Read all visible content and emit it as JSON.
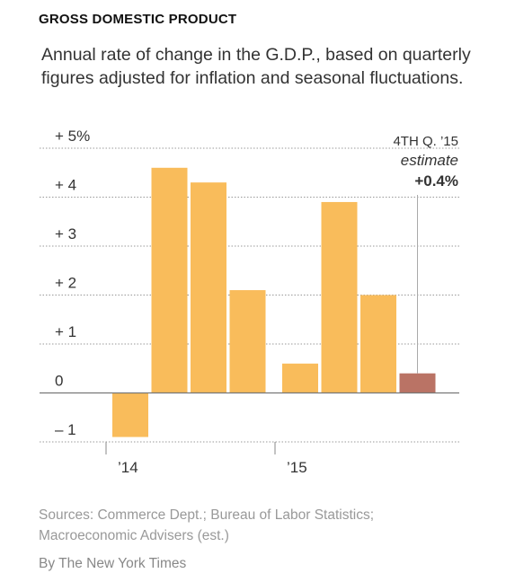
{
  "header": {
    "kicker": "GROSS DOMESTIC PRODUCT",
    "subtitle": "Annual rate of change in the G.D.P., based on quarterly figures adjusted for inflation and seasonal fluctuations."
  },
  "chart_data": {
    "type": "bar",
    "ylim": [
      -1,
      5
    ],
    "yticks": [
      5,
      4,
      3,
      2,
      1,
      0,
      -1
    ],
    "ytick_labels": [
      "+ 5%",
      "+ 4",
      "+ 3",
      "+ 2",
      "+ 1",
      "0",
      "– 1"
    ],
    "grid": true,
    "categories": [
      "Q1 2014",
      "Q2 2014",
      "Q3 2014",
      "Q4 2014",
      "Q1 2015",
      "Q2 2015",
      "Q3 2015",
      "Q4 2015"
    ],
    "values": [
      -0.9,
      4.6,
      4.3,
      2.1,
      0.6,
      3.9,
      2.0,
      0.4
    ],
    "xtick_labels": [
      "’14",
      "’15"
    ],
    "colors": {
      "bar": "#F9BC5B",
      "estimate": "#BA7365",
      "grid": "#999999",
      "baseline": "#777777"
    },
    "annotation": {
      "line1": "4TH Q. ’15",
      "line2": "estimate",
      "line3": "+0.4%"
    }
  },
  "footer": {
    "sources": "Sources: Commerce Dept.; Bureau of Labor Statistics; Macroeconomic Advisers (est.)",
    "credit": "By The New York Times"
  }
}
